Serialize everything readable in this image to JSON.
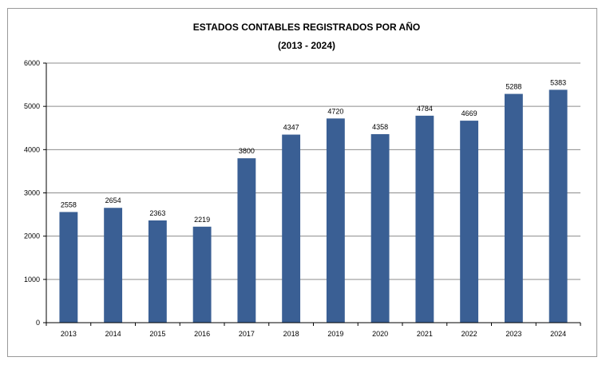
{
  "chart_data": {
    "type": "bar",
    "title": "ESTADOS CONTABLES REGISTRADOS POR AÑO",
    "subtitle": "(2013 - 2024)",
    "categories": [
      "2013",
      "2014",
      "2015",
      "2016",
      "2017",
      "2018",
      "2019",
      "2020",
      "2021",
      "2022",
      "2023",
      "2024"
    ],
    "values": [
      2558,
      2654,
      2363,
      2219,
      3800,
      4347,
      4720,
      4358,
      4784,
      4669,
      5288,
      5383
    ],
    "ylim": [
      0,
      6000
    ],
    "yticks": [
      "0",
      "1000",
      "2000",
      "3000",
      "4000",
      "5000",
      "6000"
    ],
    "grid": true,
    "legend": "none",
    "bar_color": "#3a5f94",
    "grid_color": "#8c8c8c"
  }
}
